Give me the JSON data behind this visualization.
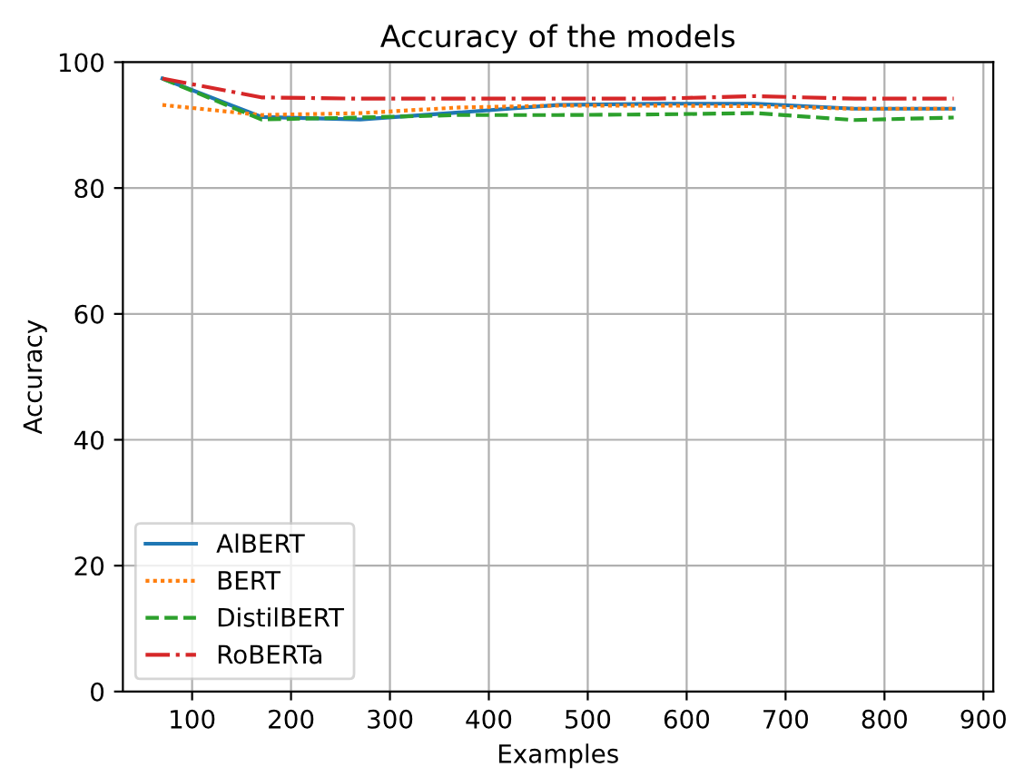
{
  "chart_data": {
    "type": "line",
    "title": "Accuracy of the models",
    "xlabel": "Examples",
    "ylabel": "Accuracy",
    "x": [
      70,
      170,
      270,
      370,
      470,
      570,
      670,
      770,
      870
    ],
    "series": [
      {
        "name": "AlBERT",
        "color": "#1f77b4",
        "line_style": "solid",
        "values": [
          97.4,
          91.3,
          90.9,
          92.0,
          93.2,
          93.4,
          93.4,
          92.6,
          92.6
        ]
      },
      {
        "name": "BERT",
        "color": "#ff7f0e",
        "line_style": "dotted",
        "values": [
          93.2,
          91.6,
          91.9,
          92.8,
          93.1,
          93.1,
          93.0,
          92.6,
          92.6
        ]
      },
      {
        "name": "DistilBERT",
        "color": "#2ca02c",
        "line_style": "dashed",
        "values": [
          97.4,
          90.9,
          91.2,
          91.6,
          91.6,
          91.7,
          91.9,
          90.8,
          91.2
        ]
      },
      {
        "name": "RoBERTa",
        "color": "#d62728",
        "line_style": "dashdot",
        "values": [
          97.4,
          94.4,
          94.2,
          94.2,
          94.2,
          94.2,
          94.6,
          94.2,
          94.2
        ]
      }
    ],
    "xlim": [
      30,
      910
    ],
    "ylim": [
      0,
      100
    ],
    "xticks": [
      100,
      200,
      300,
      400,
      500,
      600,
      700,
      800,
      900
    ],
    "yticks": [
      0,
      20,
      40,
      60,
      80,
      100
    ],
    "grid": true,
    "legend": "bottom left"
  }
}
